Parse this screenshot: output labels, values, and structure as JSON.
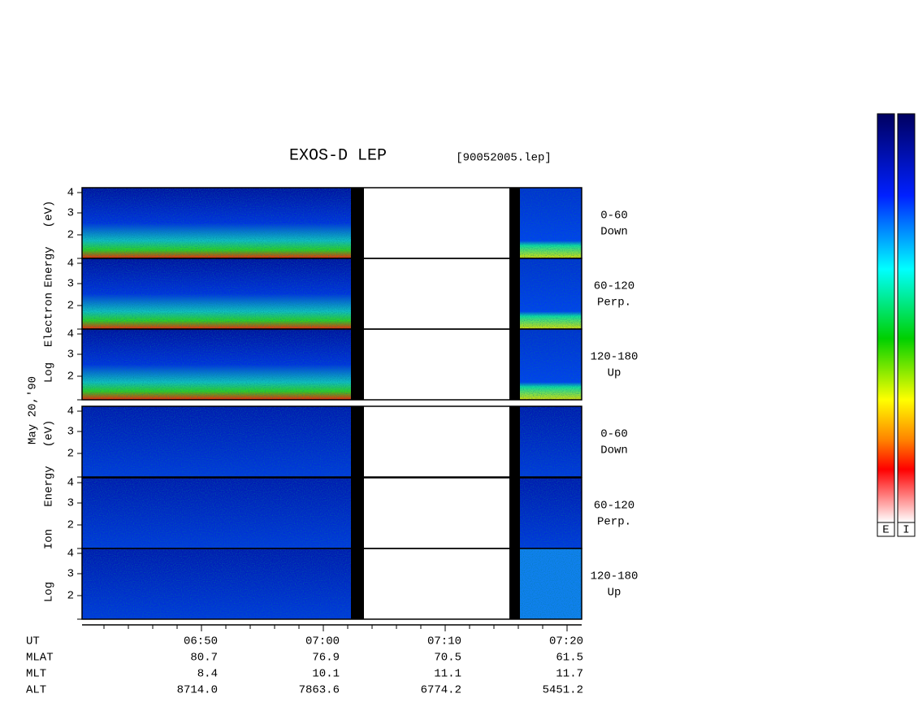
{
  "title": "EXOS-D LEP",
  "file": "[90052005.lep]",
  "date": "May 20,'90",
  "electron_axis": [
    "Log",
    "Electron",
    "Energy",
    "(eV)"
  ],
  "ion_axis": [
    "Log",
    "Ion",
    "Energy",
    "(eV)"
  ],
  "energy_ticks": [
    "4",
    "3",
    "2"
  ],
  "panels": [
    {
      "range": "0-60",
      "look": "Down"
    },
    {
      "range": "60-120",
      "look": "Perp."
    },
    {
      "range": "120-180",
      "look": "Up"
    }
  ],
  "orbit_table": [
    {
      "label": "UT",
      "values": [
        "06:50",
        "07:00",
        "07:10",
        "07:20"
      ]
    },
    {
      "label": "MLAT",
      "values": [
        "80.7",
        "76.9",
        "70.5",
        "61.5"
      ]
    },
    {
      "label": "MLT",
      "values": [
        "8.4",
        "10.1",
        "11.1",
        "11.7"
      ]
    },
    {
      "label": "ALT",
      "values": [
        "8714.0",
        "7863.6",
        "6774.2",
        "5451.2"
      ]
    }
  ],
  "colorbars": [
    "E",
    "I"
  ]
}
